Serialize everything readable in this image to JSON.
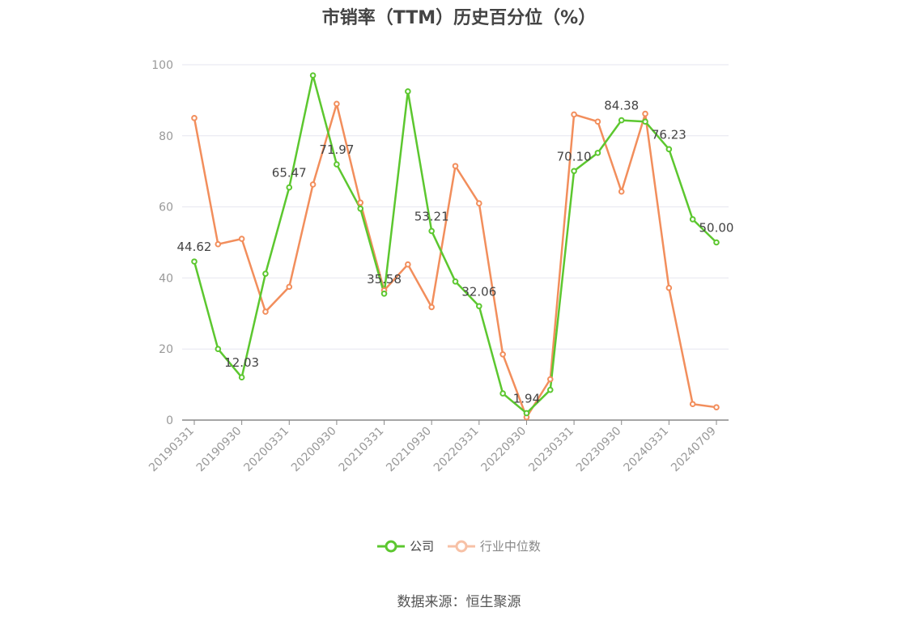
{
  "chart_data": {
    "type": "line",
    "title": "市销率（TTM）历史百分位（%）",
    "xlabel": "",
    "ylabel": "",
    "ylim": [
      0,
      100
    ],
    "yticks": [
      0,
      20,
      40,
      60,
      80,
      100
    ],
    "x": [
      "20190331",
      "20190630",
      "20190930",
      "20191231",
      "20200331",
      "20200630",
      "20200930",
      "20201231",
      "20210331",
      "20210630",
      "20210930",
      "20211231",
      "20220331",
      "20220630",
      "20220930",
      "20221231",
      "20230331",
      "20230630",
      "20230930",
      "20231231",
      "20240331",
      "20240630",
      "20240709"
    ],
    "x_tick_labels": [
      "20190331",
      "20190930",
      "20200331",
      "20200930",
      "20210331",
      "20210930",
      "20220331",
      "20220930",
      "20230331",
      "20230930",
      "20240331",
      "20240709"
    ],
    "grid": true,
    "legend_position": "bottom",
    "series": [
      {
        "name": "公司",
        "color": "#5cc72f",
        "values": [
          44.62,
          20.0,
          12.03,
          41.2,
          65.47,
          97.0,
          71.97,
          59.5,
          35.58,
          92.5,
          53.21,
          39.0,
          32.06,
          7.5,
          1.94,
          8.5,
          70.1,
          75.2,
          84.38,
          84.0,
          76.23,
          56.5,
          50.0
        ],
        "labels": [
          "44.62",
          null,
          "12.03",
          null,
          "65.47",
          null,
          "71.97",
          null,
          "35.58",
          null,
          "53.21",
          null,
          "32.06",
          null,
          "1.94",
          null,
          "70.10",
          null,
          "84.38",
          null,
          "76.23",
          null,
          "50.00"
        ]
      },
      {
        "name": "行业中位数",
        "color": "#f28e5c",
        "values": [
          85.0,
          49.5,
          51.0,
          30.5,
          37.5,
          66.3,
          89.0,
          61.2,
          36.5,
          43.8,
          31.8,
          71.5,
          61.0,
          18.5,
          0.8,
          11.5,
          86.0,
          84.0,
          64.3,
          86.2,
          37.2,
          4.5,
          3.6
        ]
      }
    ]
  },
  "source": "数据来源：恒生聚源"
}
